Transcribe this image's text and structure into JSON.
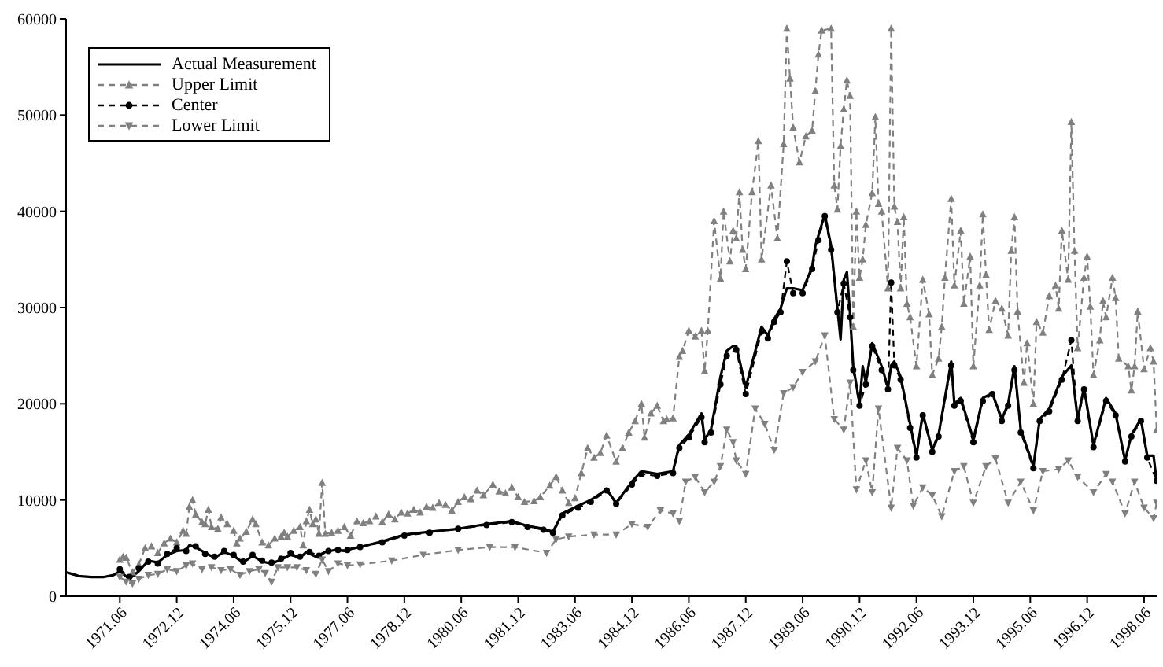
{
  "chart_data": {
    "type": "line",
    "xlim": [
      "1970-01",
      "1998-10"
    ],
    "ylim": [
      0,
      60000
    ],
    "yticks": [
      0,
      10000,
      20000,
      30000,
      40000,
      50000,
      60000
    ],
    "xticks": [
      {
        "value": "1971-06",
        "label": "1971.06"
      },
      {
        "value": "1972-12",
        "label": "1972.12"
      },
      {
        "value": "1974-06",
        "label": "1974.06"
      },
      {
        "value": "1975-12",
        "label": "1975.12"
      },
      {
        "value": "1977-06",
        "label": "1977.06"
      },
      {
        "value": "1978-12",
        "label": "1978.12"
      },
      {
        "value": "1980-06",
        "label": "1980.06"
      },
      {
        "value": "1981-12",
        "label": "1981.12"
      },
      {
        "value": "1983-06",
        "label": "1983.06"
      },
      {
        "value": "1984-12",
        "label": "1984.12"
      },
      {
        "value": "1986-06",
        "label": "1986.06"
      },
      {
        "value": "1987-12",
        "label": "1987.12"
      },
      {
        "value": "1989-06",
        "label": "1989.06"
      },
      {
        "value": "1990-12",
        "label": "1990.12"
      },
      {
        "value": "1992-06",
        "label": "1992.06"
      },
      {
        "value": "1993-12",
        "label": "1993.12"
      },
      {
        "value": "1995-06",
        "label": "1995.06"
      },
      {
        "value": "1996-12",
        "label": "1996.12"
      },
      {
        "value": "1998-06",
        "label": "1998.06"
      }
    ],
    "legend": "top left",
    "series": [
      {
        "name": "Actual Measurement",
        "color": "#000000",
        "line_style": "solid",
        "marker": "none",
        "x": [
          "1970-01",
          "1970-03",
          "1970-05",
          "1970-09",
          "1971-01",
          "1971-04",
          "1971-06",
          "1971-09",
          "1971-12",
          "1972-03",
          "1972-06",
          "1972-09",
          "1972-12",
          "1973-03",
          "1973-04",
          "1973-06",
          "1973-09",
          "1973-12",
          "1974-03",
          "1974-06",
          "1974-09",
          "1974-12",
          "1975-03",
          "1975-06",
          "1975-09",
          "1975-12",
          "1976-03",
          "1976-05",
          "1976-08",
          "1976-11",
          "1977-02",
          "1977-05",
          "1977-08",
          "1977-10",
          "1978-05",
          "1978-12",
          "1979-08",
          "1980-05",
          "1981-02",
          "1981-10",
          "1982-03",
          "1982-08",
          "1982-11",
          "1983-02",
          "1983-07",
          "1983-11",
          "1984-04",
          "1984-07",
          "1984-12",
          "1985-03",
          "1985-08",
          "1986-01",
          "1986-03",
          "1986-06",
          "1986-10",
          "1986-11",
          "1987-01",
          "1987-04",
          "1987-06",
          "1987-08",
          "1987-09",
          "1987-12",
          "1988-05",
          "1988-07",
          "1988-09",
          "1988-11",
          "1989-01",
          "1989-03",
          "1989-06",
          "1989-09",
          "1989-10",
          "1989-11",
          "1990-01",
          "1990-03",
          "1990-05",
          "1990-06",
          "1990-07",
          "1990-08",
          "1990-09",
          "1990-10",
          "1990-12",
          "1991-01",
          "1991-02",
          "1991-04",
          "1991-07",
          "1991-09",
          "1991-10",
          "1991-11",
          "1992-01",
          "1992-04",
          "1992-06",
          "1992-08",
          "1992-11",
          "1993-01",
          "1993-05",
          "1993-06",
          "1993-08",
          "1993-12",
          "1994-03",
          "1994-06",
          "1994-09",
          "1994-11",
          "1995-01",
          "1995-03",
          "1995-07",
          "1995-09",
          "1995-12",
          "1996-04",
          "1996-07",
          "1996-09",
          "1996-11",
          "1997-02",
          "1997-06",
          "1997-09",
          "1997-12",
          "1998-02",
          "1998-05",
          "1998-07",
          "1998-09",
          "1998-10"
        ],
        "values": [
          2500,
          2300,
          2100,
          2000,
          2000,
          2200,
          2600,
          1800,
          2600,
          3700,
          3500,
          4300,
          4700,
          4800,
          5300,
          5100,
          4500,
          4000,
          4600,
          4200,
          3500,
          4200,
          3600,
          3400,
          3800,
          4300,
          4000,
          4600,
          4100,
          4600,
          4800,
          4700,
          5000,
          5100,
          5700,
          6400,
          6700,
          7000,
          7500,
          7800,
          7300,
          7000,
          6700,
          8600,
          9400,
          10000,
          11100,
          9700,
          11900,
          13000,
          12700,
          13000,
          15700,
          16800,
          19000,
          16300,
          17300,
          22800,
          25500,
          26000,
          26000,
          21700,
          28000,
          27100,
          28800,
          29900,
          32000,
          32000,
          31800,
          34200,
          36400,
          37500,
          39700,
          36400,
          29900,
          26700,
          32900,
          33700,
          29300,
          23900,
          20000,
          23900,
          22200,
          26300,
          23900,
          21700,
          24000,
          24400,
          22800,
          17900,
          14600,
          19000,
          15200,
          16800,
          24400,
          20000,
          20600,
          16300,
          20600,
          21100,
          18400,
          20000,
          23900,
          17300,
          13500,
          18400,
          19500,
          22800,
          24000,
          18400,
          21700,
          15700,
          20600,
          19000,
          14100,
          16800,
          18400,
          14600,
          14600,
          11900
        ]
      },
      {
        "name": "Upper Limit",
        "color": "#808080",
        "line_style": "dashed",
        "marker": "triangle",
        "x": [
          "1971-06",
          "1971-07",
          "1971-08",
          "1971-10",
          "1971-12",
          "1972-02",
          "1972-04",
          "1972-06",
          "1972-08",
          "1972-10",
          "1972-12",
          "1973-02",
          "1973-03",
          "1973-04",
          "1973-05",
          "1973-06",
          "1973-08",
          "1973-09",
          "1973-10",
          "1973-11",
          "1974-01",
          "1974-02",
          "1974-04",
          "1974-06",
          "1974-07",
          "1974-08",
          "1974-10",
          "1974-12",
          "1975-01",
          "1975-03",
          "1975-05",
          "1975-07",
          "1975-09",
          "1975-10",
          "1975-11",
          "1976-01",
          "1976-03",
          "1976-04",
          "1976-05",
          "1976-06",
          "1976-07",
          "1976-08",
          "1976-09",
          "1976-10",
          "1976-11",
          "1977-01",
          "1977-03",
          "1977-05",
          "1977-07",
          "1977-09",
          "1977-11",
          "1978-01",
          "1978-03",
          "1978-05",
          "1978-07",
          "1978-09",
          "1978-11",
          "1979-01",
          "1979-03",
          "1979-05",
          "1979-07",
          "1979-09",
          "1979-11",
          "1980-01",
          "1980-03",
          "1980-05",
          "1980-07",
          "1980-09",
          "1980-11",
          "1981-01",
          "1981-04",
          "1981-06",
          "1981-08",
          "1981-10",
          "1981-12",
          "1982-02",
          "1982-05",
          "1982-07",
          "1982-10",
          "1982-12",
          "1983-02",
          "1983-04",
          "1983-06",
          "1983-08",
          "1983-10",
          "1983-12",
          "1984-02",
          "1984-04",
          "1984-07",
          "1984-09",
          "1984-11",
          "1985-01",
          "1985-03",
          "1985-04",
          "1985-06",
          "1985-08",
          "1985-10",
          "1985-11",
          "1986-01",
          "1986-03",
          "1986-04",
          "1986-06",
          "1986-08",
          "1986-10",
          "1986-11",
          "1986-12",
          "1987-02",
          "1987-04",
          "1987-05",
          "1987-07",
          "1987-08",
          "1987-09",
          "1987-10",
          "1987-11",
          "1987-12",
          "1988-02",
          "1988-04",
          "1988-05",
          "1988-08",
          "1988-10",
          "1988-12",
          "1989-01",
          "1989-02",
          "1989-03",
          "1989-05",
          "1989-07",
          "1989-09",
          "1989-10",
          "1989-11",
          "1989-12",
          "1990-03",
          "1990-04",
          "1990-05",
          "1990-06",
          "1990-07",
          "1990-08",
          "1990-09",
          "1990-10",
          "1990-11",
          "1990-12",
          "1991-01",
          "1991-02",
          "1991-04",
          "1991-05",
          "1991-06",
          "1991-07",
          "1991-09",
          "1991-10",
          "1991-11",
          "1991-12",
          "1992-01",
          "1992-02",
          "1992-03",
          "1992-04",
          "1992-06",
          "1992-08",
          "1992-10",
          "1992-11",
          "1993-01",
          "1993-02",
          "1993-03",
          "1993-05",
          "1993-06",
          "1993-08",
          "1993-09",
          "1993-11",
          "1993-12",
          "1994-02",
          "1994-03",
          "1994-04",
          "1994-05",
          "1994-07",
          "1994-09",
          "1994-11",
          "1994-12",
          "1995-01",
          "1995-02",
          "1995-04",
          "1995-05",
          "1995-07",
          "1995-08",
          "1995-10",
          "1995-12",
          "1996-02",
          "1996-03",
          "1996-04",
          "1996-06",
          "1996-07",
          "1996-08",
          "1996-09",
          "1996-11",
          "1996-12",
          "1997-01",
          "1997-02",
          "1997-04",
          "1997-05",
          "1997-06",
          "1997-08",
          "1997-09",
          "1997-10",
          "1998-01",
          "1998-02",
          "1998-03",
          "1998-04",
          "1998-06",
          "1998-08",
          "1998-09",
          "1998-10"
        ],
        "values": [
          3800,
          4100,
          4000,
          2500,
          3300,
          5000,
          5200,
          4500,
          5500,
          6000,
          5600,
          6800,
          6500,
          9300,
          10000,
          8500,
          7700,
          7500,
          9000,
          7200,
          7000,
          8200,
          7500,
          6800,
          5500,
          6000,
          6700,
          8000,
          7500,
          5600,
          5300,
          6000,
          6200,
          6600,
          6200,
          6800,
          7200,
          5300,
          7800,
          9000,
          7500,
          8000,
          6500,
          11800,
          6500,
          6600,
          6800,
          7200,
          6300,
          7800,
          7600,
          7800,
          8300,
          7700,
          8500,
          8000,
          8700,
          8600,
          9000,
          8700,
          9300,
          9200,
          9700,
          9500,
          8900,
          9800,
          10300,
          10100,
          11000,
          10500,
          11600,
          10900,
          10700,
          11300,
          10300,
          9800,
          9900,
          10300,
          11500,
          12400,
          11000,
          9700,
          10200,
          12800,
          15400,
          14400,
          14900,
          16700,
          14000,
          15400,
          17000,
          18200,
          20000,
          16500,
          19000,
          19800,
          18200,
          18400,
          18500,
          24900,
          25500,
          27600,
          27000,
          27600,
          23400,
          27600,
          39000,
          33000,
          40000,
          34800,
          38000,
          37200,
          42000,
          36000,
          34000,
          42000,
          47300,
          35000,
          42700,
          37200,
          47000,
          59000,
          53800,
          48700,
          45100,
          47800,
          48400,
          52500,
          56300,
          58800,
          59000,
          42700,
          40200,
          46800,
          50600,
          53600,
          52000,
          28000,
          40000,
          33100,
          35000,
          38600,
          41900,
          49800,
          40800,
          40000,
          32000,
          59000,
          40500,
          38900,
          32000,
          39400,
          30400,
          29000,
          23900,
          32900,
          29300,
          23000,
          24700,
          28000,
          33100,
          41300,
          32300,
          38000,
          30400,
          35300,
          23900,
          32300,
          39700,
          33400,
          27700,
          30700,
          29900,
          27100,
          35900,
          39400,
          29600,
          22200,
          26300,
          20000,
          28500,
          27400,
          31200,
          32300,
          29900,
          38000,
          32900,
          49300,
          35900,
          25800,
          33100,
          35300,
          30100,
          23000,
          26600,
          30700,
          29000,
          33100,
          31000,
          24700,
          23900,
          21400,
          23900,
          29600,
          23600,
          25800,
          24400,
          17300
        ]
      },
      {
        "name": "Center",
        "color": "#000000",
        "line_style": "dashed",
        "marker": "circle",
        "x": [
          "1971-06",
          "1971-09",
          "1971-12",
          "1972-03",
          "1972-06",
          "1972-09",
          "1972-12",
          "1973-03",
          "1973-06",
          "1973-09",
          "1973-12",
          "1974-03",
          "1974-06",
          "1974-09",
          "1974-12",
          "1975-03",
          "1975-06",
          "1975-09",
          "1975-12",
          "1976-03",
          "1976-06",
          "1976-09",
          "1976-12",
          "1977-03",
          "1977-06",
          "1977-10",
          "1978-05",
          "1978-12",
          "1979-08",
          "1980-05",
          "1981-02",
          "1981-10",
          "1982-03",
          "1982-08",
          "1982-11",
          "1983-02",
          "1983-07",
          "1983-11",
          "1984-04",
          "1984-07",
          "1984-12",
          "1985-03",
          "1985-08",
          "1986-01",
          "1986-03",
          "1986-06",
          "1986-10",
          "1986-11",
          "1987-01",
          "1987-04",
          "1987-06",
          "1987-09",
          "1987-12",
          "1988-05",
          "1988-07",
          "1988-09",
          "1988-11",
          "1989-01",
          "1989-03",
          "1989-06",
          "1989-09",
          "1989-11",
          "1990-01",
          "1990-03",
          "1990-05",
          "1990-07",
          "1990-09",
          "1990-10",
          "1990-12",
          "1991-02",
          "1991-04",
          "1991-07",
          "1991-09",
          "1991-10",
          "1991-11",
          "1992-01",
          "1992-04",
          "1992-06",
          "1992-08",
          "1992-11",
          "1993-01",
          "1993-05",
          "1993-06",
          "1993-08",
          "1993-12",
          "1994-03",
          "1994-06",
          "1994-09",
          "1994-11",
          "1995-01",
          "1995-03",
          "1995-07",
          "1995-09",
          "1995-12",
          "1996-04",
          "1996-07",
          "1996-09",
          "1996-11",
          "1997-02",
          "1997-06",
          "1997-09",
          "1997-12",
          "1998-02",
          "1998-05",
          "1998-07",
          "1998-10"
        ],
        "values": [
          2800,
          2000,
          2900,
          3600,
          3400,
          4400,
          5000,
          4700,
          5200,
          4400,
          4100,
          4700,
          4300,
          3600,
          4300,
          3700,
          3500,
          3900,
          4500,
          4100,
          4600,
          4200,
          4700,
          4800,
          4800,
          5100,
          5600,
          6300,
          6600,
          7000,
          7400,
          7700,
          7200,
          6900,
          6600,
          8400,
          9200,
          9800,
          11000,
          9600,
          11600,
          12700,
          12500,
          12800,
          15400,
          16500,
          18600,
          16000,
          17000,
          22000,
          25000,
          25600,
          21000,
          27500,
          26800,
          28500,
          29500,
          34800,
          31500,
          31500,
          34000,
          37000,
          39500,
          36000,
          29500,
          32500,
          29000,
          23500,
          19800,
          22000,
          26000,
          23500,
          21500,
          32600,
          24000,
          22500,
          17500,
          14400,
          18800,
          15000,
          16600,
          24000,
          19800,
          20300,
          16000,
          20300,
          21000,
          18200,
          19800,
          23500,
          17000,
          13300,
          18200,
          19200,
          22500,
          26600,
          18200,
          21500,
          15500,
          20300,
          18800,
          14000,
          16600,
          18200,
          14400,
          12000
        ]
      },
      {
        "name": "Lower Limit",
        "color": "#808080",
        "line_style": "dashed",
        "marker": "triangle-down",
        "x": [
          "1971-06",
          "1971-08",
          "1971-10",
          "1971-12",
          "1972-03",
          "1972-06",
          "1972-09",
          "1972-12",
          "1973-03",
          "1973-05",
          "1973-08",
          "1973-11",
          "1974-02",
          "1974-05",
          "1974-08",
          "1974-11",
          "1975-02",
          "1975-04",
          "1975-06",
          "1975-08",
          "1975-11",
          "1976-02",
          "1976-05",
          "1976-08",
          "1976-10",
          "1976-12",
          "1977-03",
          "1977-06",
          "1977-10",
          "1978-08",
          "1979-06",
          "1980-05",
          "1981-03",
          "1981-11",
          "1982-09",
          "1982-12",
          "1983-04",
          "1983-12",
          "1984-07",
          "1984-12",
          "1985-05",
          "1985-09",
          "1986-01",
          "1986-03",
          "1986-05",
          "1986-08",
          "1986-11",
          "1987-02",
          "1987-04",
          "1987-06",
          "1987-08",
          "1987-09",
          "1987-12",
          "1988-03",
          "1988-06",
          "1988-09",
          "1988-12",
          "1989-03",
          "1989-06",
          "1989-10",
          "1990-01",
          "1990-04",
          "1990-07",
          "1990-09",
          "1990-11",
          "1991-02",
          "1991-04",
          "1991-06",
          "1991-10",
          "1991-12",
          "1992-03",
          "1992-05",
          "1992-08",
          "1992-11",
          "1993-02",
          "1993-06",
          "1993-09",
          "1993-12",
          "1994-04",
          "1994-07",
          "1994-11",
          "1995-03",
          "1995-07",
          "1995-10",
          "1996-03",
          "1996-06",
          "1996-09",
          "1997-02",
          "1997-06",
          "1997-08",
          "1997-12",
          "1998-03",
          "1998-06",
          "1998-09",
          "1998-10"
        ],
        "values": [
          2000,
          1500,
          1300,
          1800,
          2200,
          2300,
          2800,
          2600,
          3200,
          3400,
          2800,
          3000,
          2700,
          2800,
          2200,
          2600,
          2800,
          2400,
          1500,
          3000,
          3000,
          3000,
          2700,
          2300,
          3800,
          2600,
          3400,
          3200,
          3300,
          3700,
          4300,
          4800,
          5100,
          5100,
          4500,
          5900,
          6200,
          6400,
          6400,
          7500,
          7200,
          8900,
          8600,
          7800,
          11900,
          12400,
          10800,
          11900,
          13500,
          17300,
          16000,
          14100,
          12700,
          19500,
          17900,
          15200,
          21100,
          21700,
          23300,
          24400,
          27100,
          18400,
          17300,
          22200,
          11100,
          14100,
          10800,
          19500,
          9200,
          15400,
          14100,
          9400,
          11300,
          10500,
          8300,
          13000,
          13500,
          9700,
          13500,
          14300,
          9700,
          11900,
          8900,
          13000,
          13200,
          14100,
          12400,
          10800,
          12700,
          11900,
          8600,
          11900,
          9200,
          8100,
          9700
        ]
      }
    ]
  }
}
